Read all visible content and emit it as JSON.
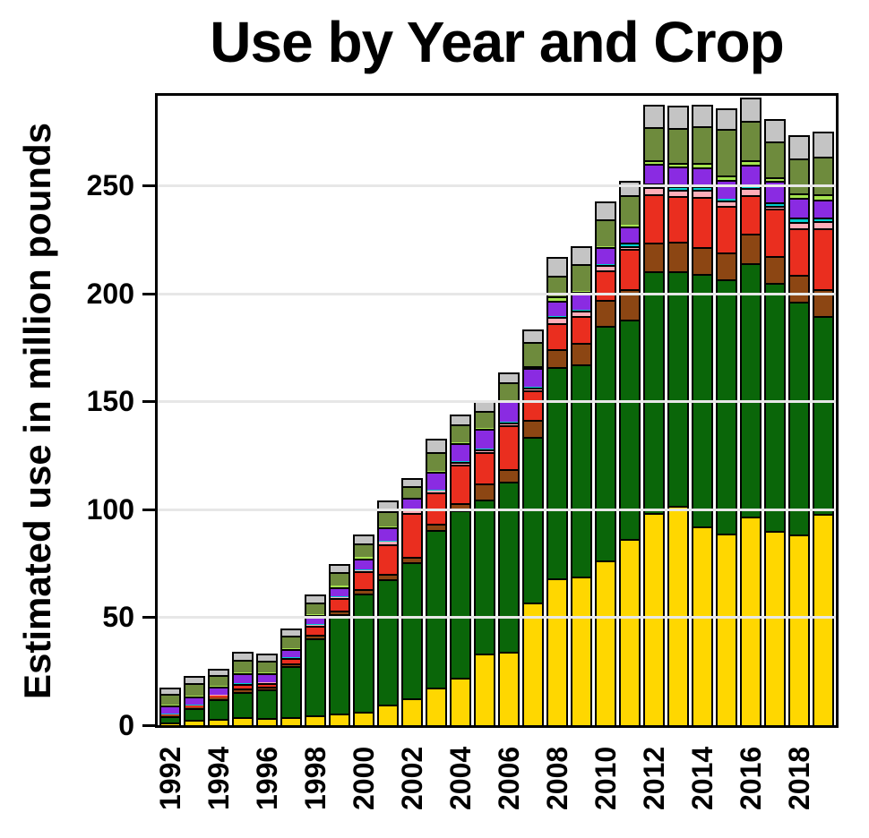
{
  "title": "Use by Year and Crop",
  "y_axis": {
    "label": "Estimated use in million pounds",
    "ticks": [
      {
        "label": "0",
        "value": 0
      },
      {
        "label": "50",
        "value": 50
      },
      {
        "label": "100",
        "value": 100
      },
      {
        "label": "150",
        "value": 150
      },
      {
        "label": "200",
        "value": 200
      },
      {
        "label": "250",
        "value": 250
      }
    ]
  },
  "x_axis": {
    "tick_labels": [
      "1992",
      "1994",
      "1996",
      "1998",
      "2000",
      "2002",
      "2004",
      "2006",
      "2008",
      "2010",
      "2012",
      "2014",
      "2016",
      "2018"
    ]
  },
  "colors": {
    "background": "#FFFFFF",
    "axis_and_outline": "#000000",
    "gridline": "#E7E7E7"
  },
  "chart_data": {
    "type": "bar",
    "stacked": true,
    "title": "Use by Year and Crop",
    "xlabel": "",
    "ylabel": "Estimated use in million pounds",
    "ylim": [
      0,
      291.7
    ],
    "grid": true,
    "gridline_values": [
      50,
      100,
      150,
      200,
      250
    ],
    "legend": "none",
    "x": [
      1992,
      1993,
      1994,
      1995,
      1996,
      1997,
      1998,
      1999,
      2000,
      2001,
      2002,
      2003,
      2004,
      2005,
      2006,
      2007,
      2008,
      2009,
      2010,
      2011,
      2012,
      2013,
      2014,
      2015,
      2016,
      2017,
      2018,
      2019
    ],
    "series_order": "bottom-to-top",
    "series": [
      {
        "name": "yellow",
        "color": "#FFD700",
        "values": [
          1.4,
          2.5,
          2.8,
          3.9,
          3.5,
          3.9,
          4.4,
          5.3,
          6.2,
          9.4,
          12.4,
          17.3,
          22.1,
          33.2,
          33.9,
          57.0,
          68.0,
          68.9,
          76.3,
          86.4,
          98.2,
          101.7,
          92.0,
          88.8,
          96.5,
          90.2,
          88.5,
          97.9
        ]
      },
      {
        "name": "dark-green",
        "color": "#0A6609",
        "values": [
          2.6,
          5.4,
          9.4,
          11.6,
          13.1,
          23.5,
          36.0,
          46.1,
          54.7,
          58.3,
          63.0,
          73.3,
          77.5,
          71.3,
          78.9,
          76.5,
          98.0,
          98.4,
          108.8,
          101.7,
          112.0,
          108.8,
          117.0,
          118.0,
          117.5,
          114.9,
          107.9,
          91.8
        ]
      },
      {
        "name": "brown",
        "color": "#8C4613",
        "values": [
          0.5,
          0.6,
          0.8,
          1.4,
          1.4,
          1.1,
          1.4,
          1.8,
          2.3,
          2.3,
          2.7,
          2.7,
          3.4,
          7.5,
          6.0,
          7.9,
          8.3,
          9.7,
          11.8,
          13.8,
          13.5,
          13.5,
          12.7,
          12.5,
          13.8,
          12.3,
          12.4,
          12.5
        ]
      },
      {
        "name": "red",
        "color": "#EA2E1F",
        "values": [
          0.6,
          0.7,
          0.9,
          2.1,
          1.7,
          2.5,
          4.4,
          5.8,
          8.3,
          14.0,
          20.1,
          14.6,
          17.6,
          14.5,
          20.1,
          13.8,
          12.1,
          12.7,
          14.1,
          18.7,
          22.5,
          21.1,
          23.0,
          21.3,
          18.0,
          21.9,
          21.5,
          28.3
        ]
      },
      {
        "name": "pink",
        "color": "#FFAEB9",
        "values": [
          0.1,
          0.1,
          0.1,
          0.3,
          0.2,
          0.3,
          0.4,
          0.5,
          0.5,
          1.0,
          1.0,
          1.0,
          1.4,
          1.3,
          1.4,
          1.4,
          2.8,
          2.3,
          2.1,
          1.2,
          3.0,
          3.0,
          3.5,
          2.7,
          3.0,
          1.5,
          3.0,
          3.0
        ]
      },
      {
        "name": "cyan",
        "color": "#00CDCD",
        "values": [
          0.2,
          0.2,
          0.2,
          0.2,
          0.2,
          0.2,
          0.2,
          0.2,
          0.2,
          0.3,
          0.3,
          0.3,
          0.4,
          0.4,
          0.4,
          0.3,
          0.5,
          0.5,
          0.8,
          1.8,
          1.8,
          1.8,
          1.8,
          0.5,
          1.8,
          1.7,
          1.8,
          1.8
        ]
      },
      {
        "name": "purple",
        "color": "#8A2BE2",
        "values": [
          3.6,
          4.0,
          3.8,
          4.6,
          4.2,
          3.9,
          4.2,
          4.4,
          4.8,
          6.5,
          5.8,
          8.1,
          8.4,
          9.0,
          9.4,
          8.5,
          7.2,
          8.3,
          7.6,
          7.5,
          9.0,
          9.0,
          8.5,
          9.0,
          9.3,
          9.8,
          9.3,
          8.4
        ]
      },
      {
        "name": "green-yellow",
        "color": "#A6E44F",
        "values": [
          0.4,
          0.3,
          0.3,
          0.4,
          0.4,
          0.5,
          0.6,
          0.7,
          1.0,
          0.3,
          0.3,
          0.4,
          0.5,
          0.5,
          0.6,
          1.2,
          1.8,
          0.5,
          0.5,
          1.0,
          1.9,
          1.9,
          2.0,
          2.0,
          1.9,
          1.7,
          2.0,
          2.2
        ]
      },
      {
        "name": "olive",
        "color": "#6E8B3D",
        "values": [
          5.2,
          5.6,
          4.8,
          6.0,
          5.2,
          5.6,
          5.4,
          6.0,
          6.4,
          7.2,
          5.3,
          9.0,
          8.0,
          8.1,
          8.3,
          11.0,
          9.7,
          12.5,
          12.5,
          13.6,
          15.5,
          16.0,
          17.0,
          21.7,
          18.5,
          16.6,
          16.2,
          17.5
        ]
      },
      {
        "name": "gray",
        "color": "#C4C4C4",
        "values": [
          2.2,
          2.6,
          2.2,
          2.8,
          2.6,
          2.6,
          2.8,
          3.0,
          3.2,
          4.2,
          3.0,
          5.1,
          4.1,
          4.0,
          3.9,
          4.9,
          7.8,
          7.5,
          7.6,
          5.8,
          9.4,
          9.4,
          9.4,
          8.7,
          9.7,
          9.6,
          10.1,
          10.7
        ]
      }
    ]
  }
}
